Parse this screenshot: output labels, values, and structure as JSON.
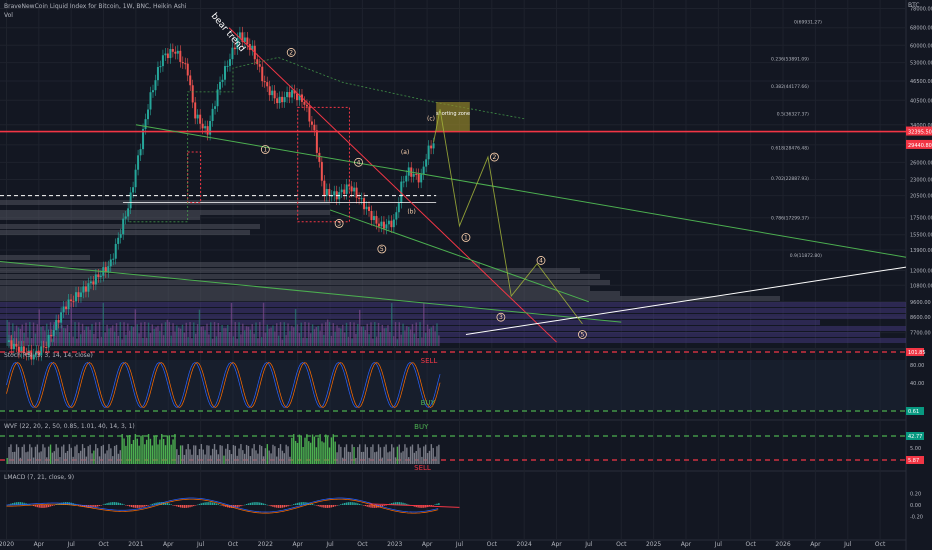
{
  "header": {
    "title": "BraveNewCoin Liquid Index for Bitcoin, 1W, BNC, Heikin Ashi",
    "vol_label": "Vol",
    "currency": "BTC"
  },
  "chart_data": [
    {
      "type": "candlestick",
      "panel": "price",
      "title": "BraveNewCoin Liquid Index for Bitcoin, 1W, BNC, Heikin Ashi",
      "y_scale": "log",
      "ylim": [
        7000,
        80000
      ],
      "y_ticks": [
        "78000.00",
        "68000.00",
        "60000.00",
        "53000.00",
        "46500.00",
        "40500.00",
        "34000.00",
        "29440.00",
        "26000.00",
        "23000.00",
        "20500.00",
        "17500.00",
        "15500.00",
        "13900.00",
        "12000.00",
        "10800.00",
        "9600.00",
        "8600.00",
        "7700.00"
      ],
      "y_tick_values": [
        78000,
        68000,
        60000,
        53000,
        46500,
        40500,
        34000,
        29440,
        26000,
        23000,
        20500,
        17500,
        15500,
        13900,
        12000,
        10800,
        9600,
        8600,
        7700
      ],
      "price_labels": [
        {
          "text": "32395.50",
          "value": 32395.5,
          "color": "#f23645"
        },
        {
          "text": "29440.80",
          "value": 29440.8,
          "color": "#f23645"
        }
      ],
      "x_ticks": [
        "2020",
        "Apr",
        "Jul",
        "Oct",
        "2021",
        "Apr",
        "Jul",
        "Oct",
        "2022",
        "Apr",
        "Jul",
        "Oct",
        "2023",
        "Apr",
        "Jul",
        "Oct",
        "2024",
        "Apr",
        "Jul",
        "Oct",
        "2025",
        "Apr",
        "Jul",
        "Oct",
        "2026",
        "Apr",
        "Jul",
        "Oct"
      ],
      "x_tick_values": [
        2020.0,
        2020.25,
        2020.5,
        2020.75,
        2021.0,
        2021.25,
        2021.5,
        2021.75,
        2022.0,
        2022.25,
        2022.5,
        2022.75,
        2023.0,
        2023.25,
        2023.5,
        2023.75,
        2024.0,
        2024.25,
        2024.5,
        2024.75,
        2025.0,
        2025.25,
        2025.5,
        2025.75,
        2026.0,
        2026.25,
        2026.5,
        2026.75
      ],
      "xlim": [
        2019.95,
        2026.95
      ],
      "price_path": [
        [
          2020.0,
          7200
        ],
        [
          2020.2,
          6500
        ],
        [
          2020.3,
          7000
        ],
        [
          2020.45,
          9300
        ],
        [
          2020.6,
          10500
        ],
        [
          2020.8,
          12500
        ],
        [
          2020.95,
          19500
        ],
        [
          2021.1,
          40000
        ],
        [
          2021.2,
          55000
        ],
        [
          2021.3,
          58000
        ],
        [
          2021.4,
          50000
        ],
        [
          2021.45,
          37000
        ],
        [
          2021.55,
          32000
        ],
        [
          2021.65,
          46000
        ],
        [
          2021.8,
          65000
        ],
        [
          2021.9,
          58000
        ],
        [
          2022.0,
          45000
        ],
        [
          2022.1,
          40000
        ],
        [
          2022.2,
          43000
        ],
        [
          2022.3,
          40000
        ],
        [
          2022.38,
          32000
        ],
        [
          2022.45,
          21000
        ],
        [
          2022.55,
          20500
        ],
        [
          2022.65,
          22000
        ],
        [
          2022.75,
          19500
        ],
        [
          2022.85,
          17000
        ],
        [
          2022.9,
          16500
        ],
        [
          2023.0,
          17000
        ],
        [
          2023.05,
          22000
        ],
        [
          2023.1,
          24500
        ],
        [
          2023.2,
          23000
        ],
        [
          2023.25,
          28000
        ],
        [
          2023.3,
          30000
        ]
      ],
      "annotations": [
        {
          "text": "bear trend",
          "x": 2021.72,
          "y": 72000
        },
        {
          "text": "shorting zone",
          "x": 2023.4,
          "y": 36500
        },
        {
          "text": "0.618(28476.48)",
          "x": 2026.2,
          "y": 28500
        },
        {
          "text": "0.702(22887.93)",
          "x": 2026.2,
          "y": 22900
        },
        {
          "text": "0.786(17299.37)",
          "x": 2026.2,
          "y": 17300
        },
        {
          "text": "0.5(36327.37)",
          "x": 2026.2,
          "y": 36300
        },
        {
          "text": "0.382(44177.66)",
          "x": 2026.2,
          "y": 44200
        },
        {
          "text": "0.236(53891.09)",
          "x": 2026.2,
          "y": 53900
        },
        {
          "text": "0(69931.27)",
          "x": 2026.3,
          "y": 70000
        },
        {
          "text": "0.9(11872.80)",
          "x": 2026.3,
          "y": 13200
        }
      ],
      "wave_labels": [
        "1",
        "2",
        "3",
        "4",
        "5",
        "(a)",
        "(b)",
        "(c)",
        "1",
        "2",
        "3",
        "4",
        "5"
      ]
    },
    {
      "type": "line",
      "panel": "stoch_rsi",
      "title": "Stoch RSI (3, 3, 14, 14, close)",
      "ylim": [
        0,
        100
      ],
      "y_ticks": [
        "80.00",
        "40.00"
      ],
      "right_labels": [
        {
          "text": "101.85",
          "color": "#f23645"
        },
        {
          "text": "0.61",
          "color": "#089981"
        }
      ],
      "annotations": [
        "SELL",
        "BUY"
      ]
    },
    {
      "type": "bar",
      "panel": "wvf",
      "title": "WVF (22, 20, 2, 50, 0.85, 1.01, 40, 14, 3, 1)",
      "y_ticks": [
        "5.00"
      ],
      "right_labels": [
        {
          "text": "42.77",
          "color": "#089981"
        },
        {
          "text": "5.87",
          "color": "#f23645"
        }
      ],
      "annotations": [
        "BUY",
        "SELL"
      ]
    },
    {
      "type": "bar",
      "panel": "lmacd",
      "title": "LMACD (7, 21, close, 9)",
      "ylim": [
        -0.35,
        0.3
      ],
      "y_ticks": [
        "0.20",
        "0.00",
        "-0.20"
      ],
      "y_tick_values": [
        0.2,
        0.0,
        -0.2
      ]
    }
  ]
}
